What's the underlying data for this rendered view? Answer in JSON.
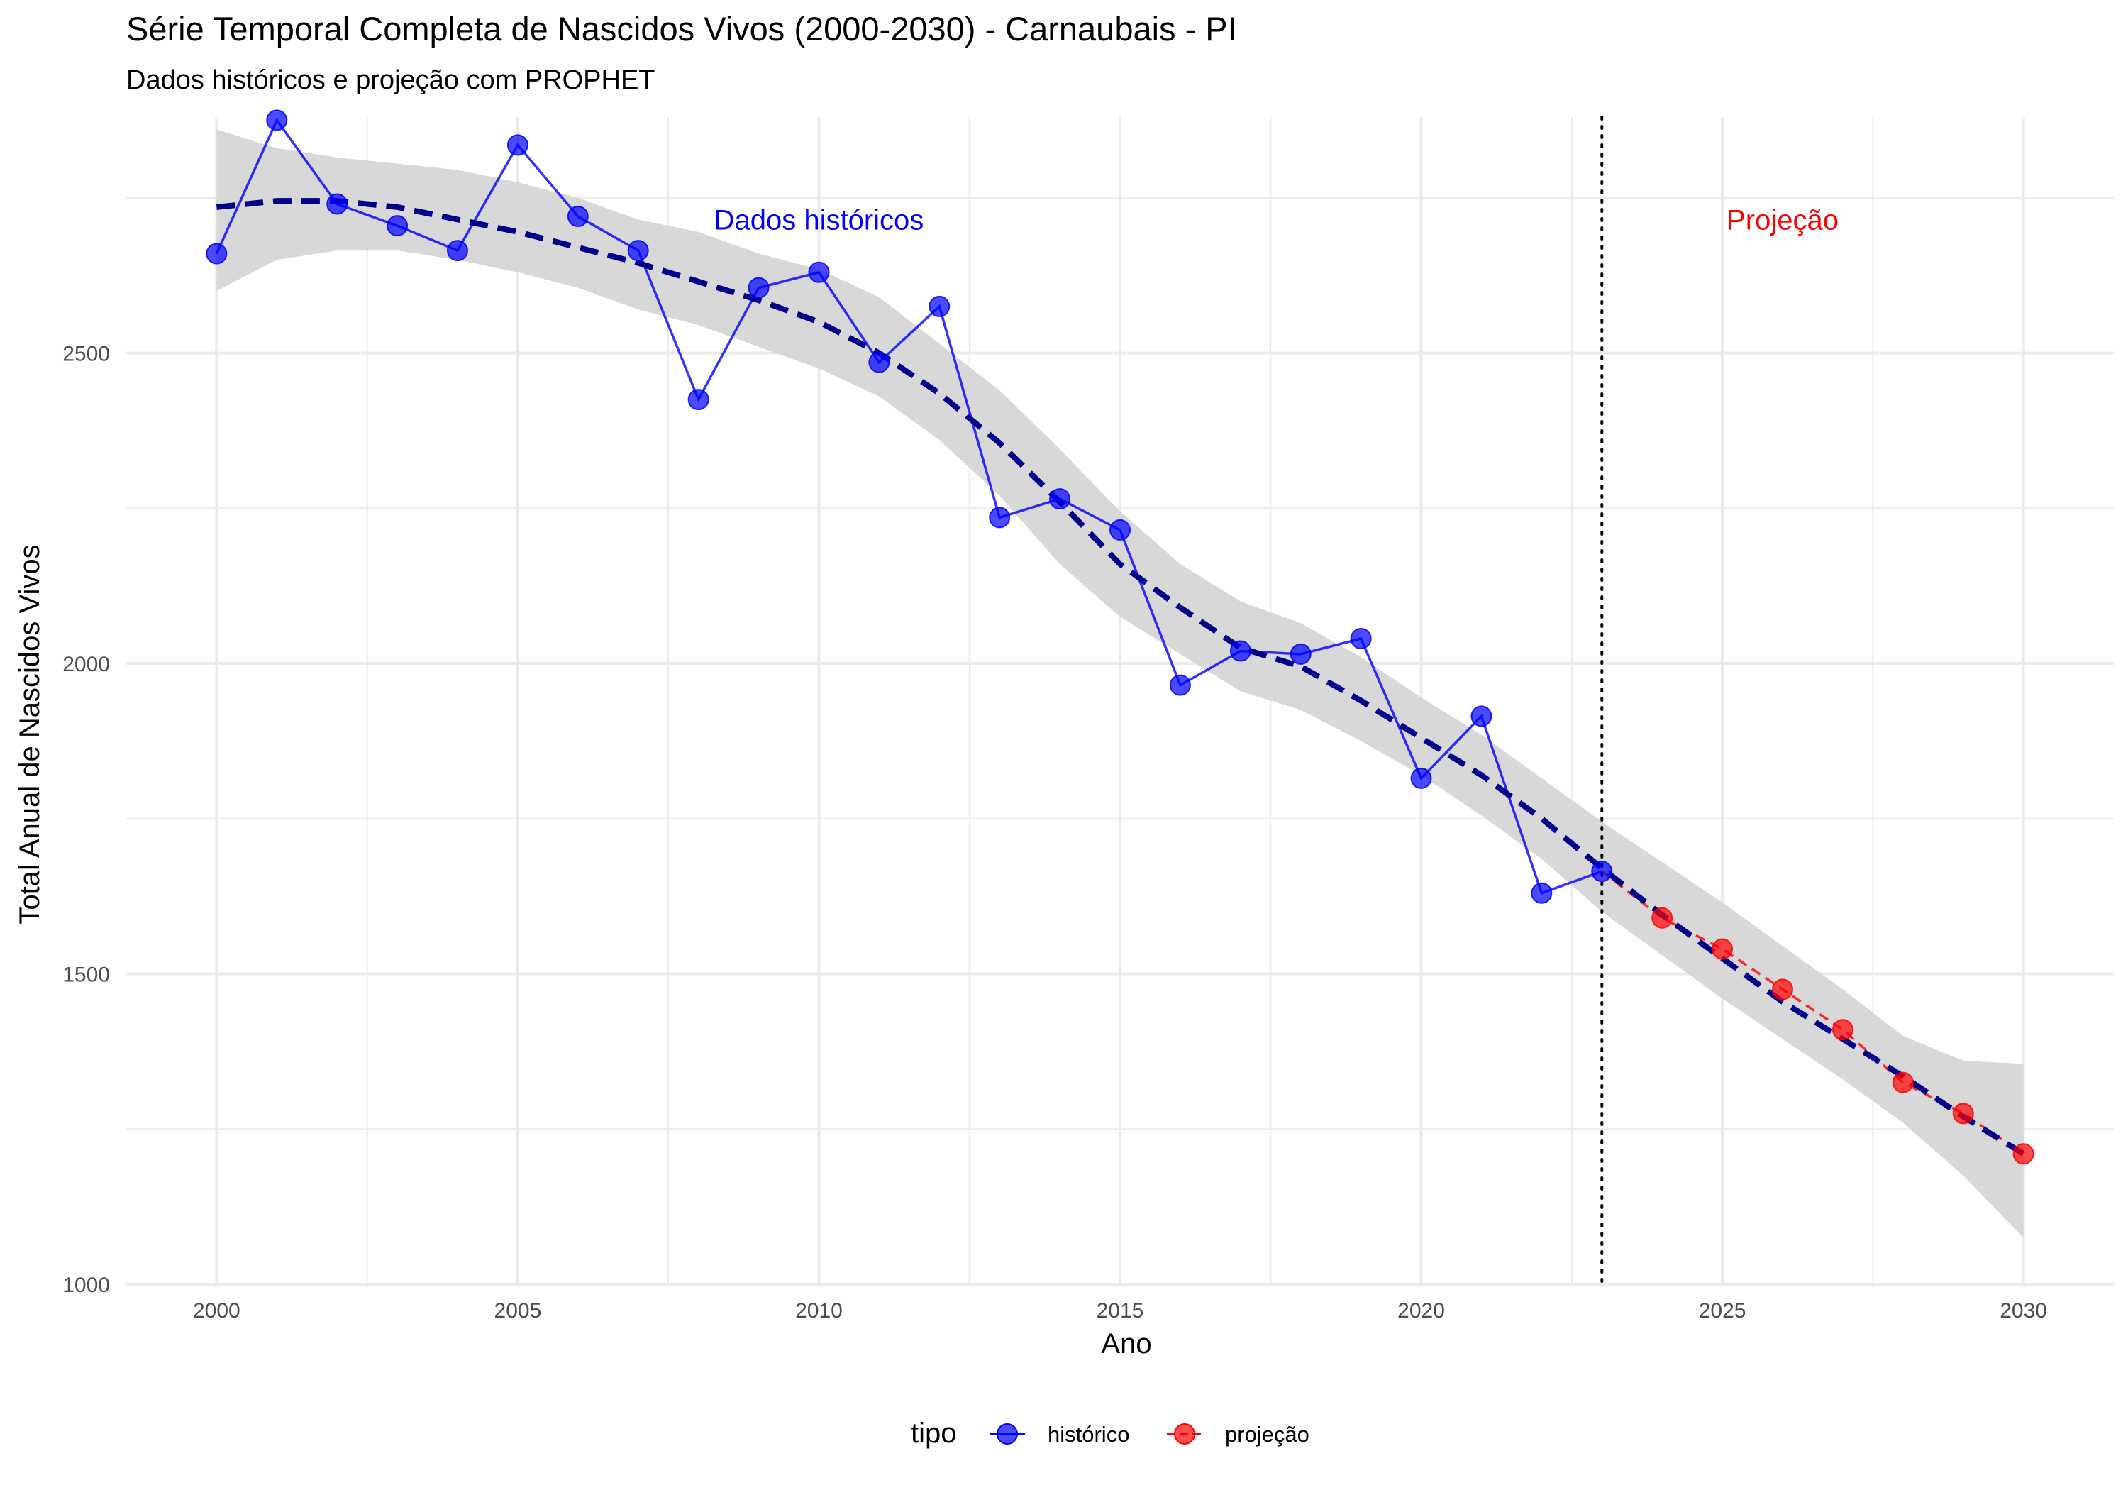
{
  "chart_data": {
    "type": "line",
    "title": "Série Temporal Completa de Nascidos Vivos (2000-2030) -  Carnaubais - PI",
    "subtitle": "Dados históricos e projeção com PROPHET",
    "xlabel": "Ano",
    "ylabel": "Total Anual de Nascidos Vivos",
    "xlim": [
      1998.5,
      2031.5
    ],
    "ylim": [
      1000,
      2880
    ],
    "x_ticks": [
      2000,
      2005,
      2010,
      2015,
      2020,
      2025,
      2030
    ],
    "y_ticks": [
      1000,
      1500,
      2000,
      2500
    ],
    "grid": true,
    "legend": {
      "title": "tipo",
      "position": "bottom",
      "entries": [
        {
          "label": "histórico",
          "color": "#0000ff"
        },
        {
          "label": "projeção",
          "color": "#ff0000"
        }
      ]
    },
    "series": [
      {
        "name": "histórico",
        "color": "#0000ff",
        "x": [
          2000,
          2001,
          2002,
          2003,
          2004,
          2005,
          2006,
          2007,
          2008,
          2009,
          2010,
          2011,
          2012,
          2013,
          2014,
          2015,
          2016,
          2017,
          2018,
          2019,
          2020,
          2021,
          2022,
          2023
        ],
        "values": [
          2660,
          2875,
          2740,
          2705,
          2665,
          2835,
          2720,
          2665,
          2425,
          2605,
          2630,
          2485,
          2575,
          2235,
          2265,
          2215,
          1965,
          2020,
          2015,
          2040,
          1815,
          1915,
          1630,
          1665
        ]
      },
      {
        "name": "projeção",
        "color": "#ff0000",
        "x": [
          2023,
          2024,
          2025,
          2026,
          2027,
          2028,
          2029,
          2030
        ],
        "values": [
          1665,
          1590,
          1540,
          1475,
          1410,
          1325,
          1275,
          1210
        ]
      }
    ],
    "trend": {
      "color": "#00008b",
      "x": [
        2000,
        2001,
        2002,
        2003,
        2004,
        2005,
        2006,
        2007,
        2008,
        2009,
        2010,
        2011,
        2012,
        2013,
        2014,
        2015,
        2016,
        2017,
        2018,
        2019,
        2020,
        2021,
        2022,
        2023,
        2024,
        2025,
        2026,
        2027,
        2028,
        2029,
        2030
      ],
      "values": [
        2735,
        2745,
        2745,
        2735,
        2715,
        2695,
        2670,
        2645,
        2615,
        2585,
        2550,
        2500,
        2435,
        2355,
        2260,
        2160,
        2090,
        2025,
        1995,
        1940,
        1880,
        1820,
        1750,
        1670,
        1595,
        1525,
        1455,
        1395,
        1335,
        1270,
        1210
      ],
      "band_lower": [
        2600,
        2650,
        2665,
        2665,
        2650,
        2630,
        2605,
        2570,
        2545,
        2510,
        2475,
        2430,
        2360,
        2270,
        2160,
        2075,
        2015,
        1955,
        1925,
        1875,
        1820,
        1755,
        1685,
        1600,
        1530,
        1460,
        1395,
        1330,
        1260,
        1175,
        1075
      ],
      "band_upper": [
        2860,
        2830,
        2815,
        2805,
        2795,
        2775,
        2750,
        2715,
        2695,
        2660,
        2635,
        2590,
        2515,
        2440,
        2345,
        2245,
        2160,
        2100,
        2065,
        2010,
        1945,
        1885,
        1815,
        1745,
        1680,
        1615,
        1545,
        1475,
        1400,
        1360,
        1355
      ]
    },
    "reference_line": {
      "x": 2023,
      "style": "dotted"
    },
    "annotations": [
      {
        "text": "Dados históricos",
        "x": 2010,
        "y": 2715,
        "color": "#0000ff"
      },
      {
        "text": "Projeção",
        "x": 2026,
        "y": 2715,
        "color": "#ff0000"
      }
    ]
  }
}
